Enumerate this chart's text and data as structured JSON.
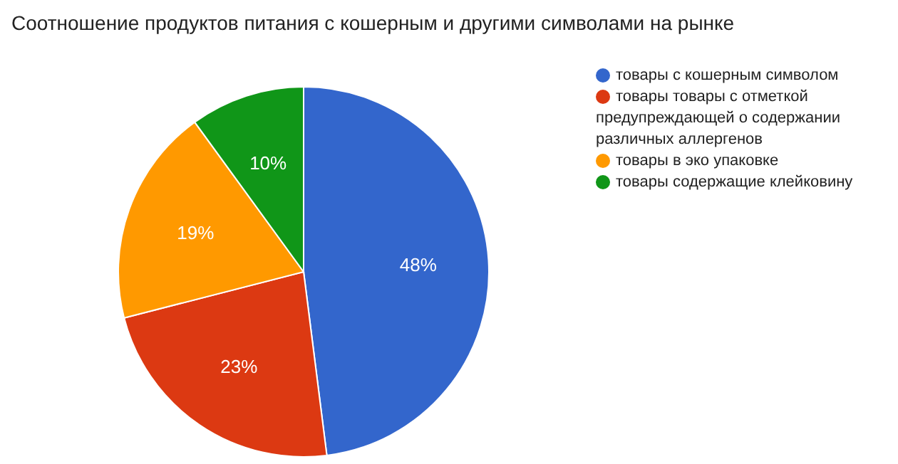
{
  "chart_data": {
    "type": "pie",
    "title": "Соотношение продуктов питания с кошерным и другими символами на рынке",
    "categories": [
      "товары с кошерным символом",
      "товары товары  с отметкой предупреждающей о содержании различных аллергенов",
      "товары в эко упаковке",
      "товары содержащие клейковину"
    ],
    "values": [
      48,
      23,
      19,
      10
    ],
    "colors": [
      "#3366cc",
      "#dc3912",
      "#ff9900",
      "#109618"
    ],
    "value_labels": [
      "48%",
      "23%",
      "19%",
      "10%"
    ],
    "legend": "right"
  }
}
